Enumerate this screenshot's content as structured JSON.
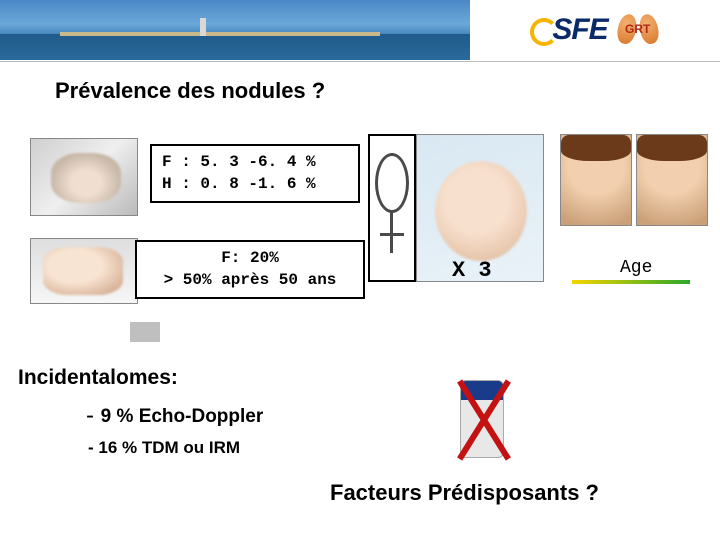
{
  "header": {
    "logo_text": "SFE",
    "badge_text": "GRT"
  },
  "title": "Prévalence des nodules ?",
  "stats_palpation": {
    "line1": "F : 5. 3 -6. 4 %",
    "line2": "H : 0. 8 -1. 6 %"
  },
  "stats_echo": {
    "line1": "F: 20%",
    "line2": "> 50% après 50 ans"
  },
  "multiplier": "X 3",
  "age_label": "Age",
  "incidentalomes": {
    "heading": "Incidentalomes:",
    "item1_prefix": "- ",
    "item1_value": "9 % Echo-Doppler",
    "item2": "- 16 % TDM ou IRM"
  },
  "factors_question": "Facteurs Prédisposants ?",
  "colors": {
    "accent_blue": "#0a2a6a",
    "red_cross": "#c41212",
    "underline_start": "#f5d400",
    "underline_end": "#2aa82a"
  }
}
